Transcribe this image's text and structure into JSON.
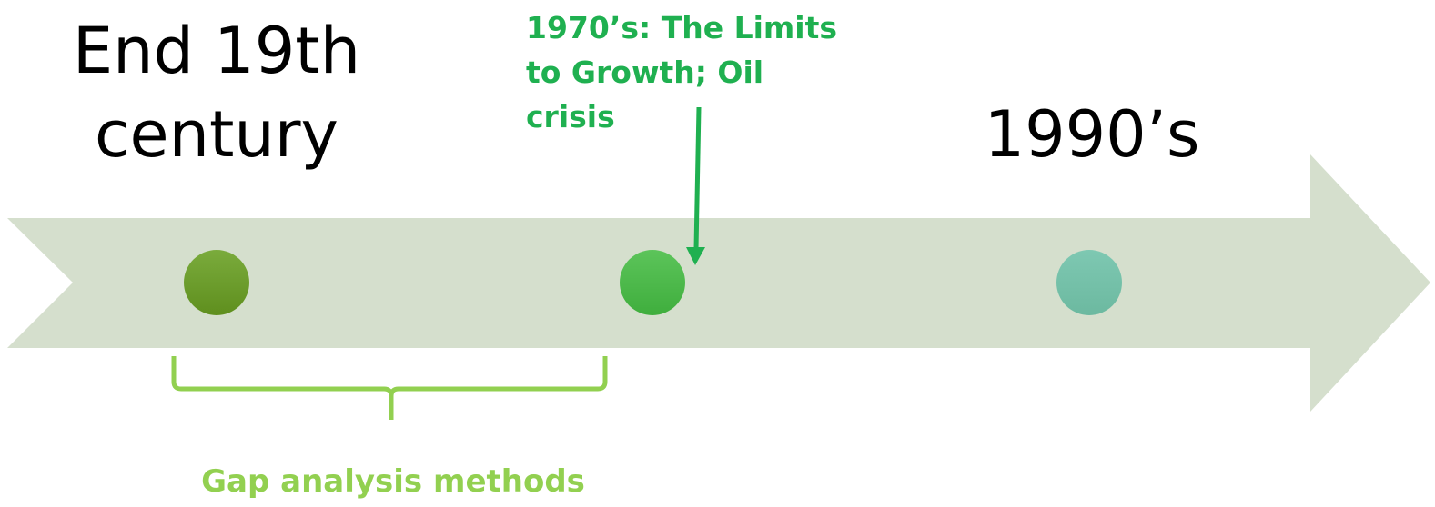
{
  "timeline": {
    "start": {
      "lines": [
        "End 19th",
        "century"
      ]
    },
    "end": {
      "lines": [
        "1990’s"
      ]
    },
    "annotation": {
      "lines": [
        "1970’s: The Limits",
        "to Growth; Oil",
        "crisis"
      ]
    },
    "span": {
      "label": "Gap analysis methods"
    }
  }
}
